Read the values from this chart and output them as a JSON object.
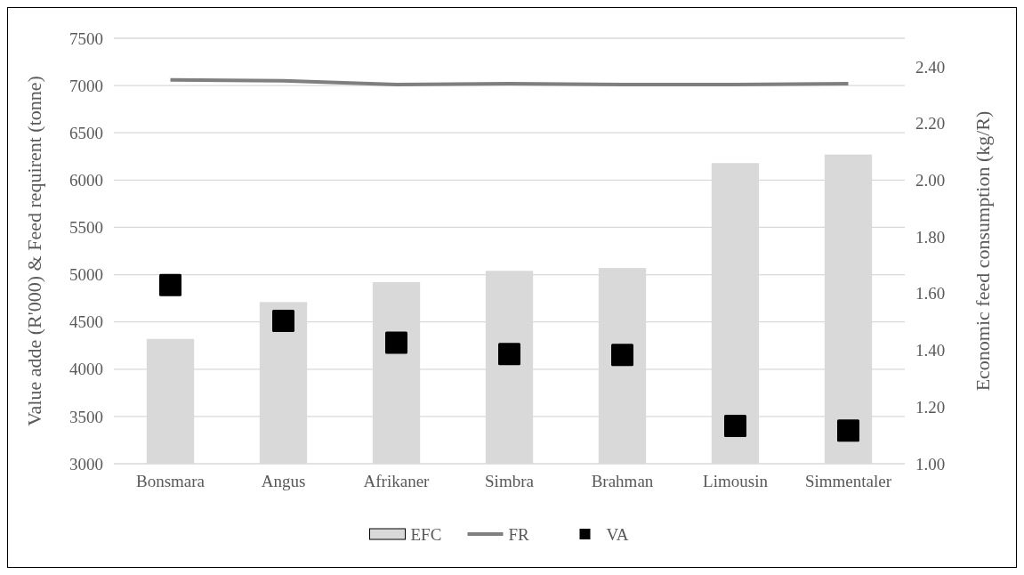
{
  "chart_data": {
    "type": "bar",
    "categories": [
      "Bonsmara",
      "Angus",
      "Afrikaner",
      "Simbra",
      "Brahman",
      "Limousin",
      "Simmentaler"
    ],
    "ylabel": "Value adde (R'000) & Feed requirent (tonne)",
    "y2label": "Economic feed consumption (kg/R)",
    "ylim": [
      3000,
      7500
    ],
    "yticks": [
      3000,
      3500,
      4000,
      4500,
      5000,
      5500,
      6000,
      6500,
      7000,
      7500
    ],
    "y2lim": [
      1,
      2.5
    ],
    "y2ticks": [
      {
        "value": 1,
        "label": "1.00"
      },
      {
        "value": 1.2,
        "label": "1.20"
      },
      {
        "value": 1.4,
        "label": "1.40"
      },
      {
        "value": 1.6,
        "label": "1.60"
      },
      {
        "value": 1.8,
        "label": "1.80"
      },
      {
        "value": 2,
        "label": "2.00"
      },
      {
        "value": 2.2,
        "label": "2.20"
      },
      {
        "value": 2.4,
        "label": "2.40"
      }
    ],
    "grid": "y",
    "legend": "bottom",
    "series": [
      {
        "name": "EFC",
        "axis": "y2",
        "color": "#d9d9d9",
        "values": [
          1.44,
          1.57,
          1.64,
          1.68,
          1.69,
          2.06,
          2.09
        ]
      },
      {
        "name": "FR",
        "type": "line",
        "color": "#7f7f7f",
        "marker": "none",
        "line_style": "solid",
        "values": [
          7060,
          7050,
          7010,
          7020,
          7010,
          7010,
          7020
        ]
      },
      {
        "name": "VA",
        "type": "scatter",
        "color": "#000000",
        "marker": "square",
        "values": [
          4890,
          4510,
          4280,
          4160,
          4150,
          3400,
          3350
        ]
      }
    ]
  }
}
